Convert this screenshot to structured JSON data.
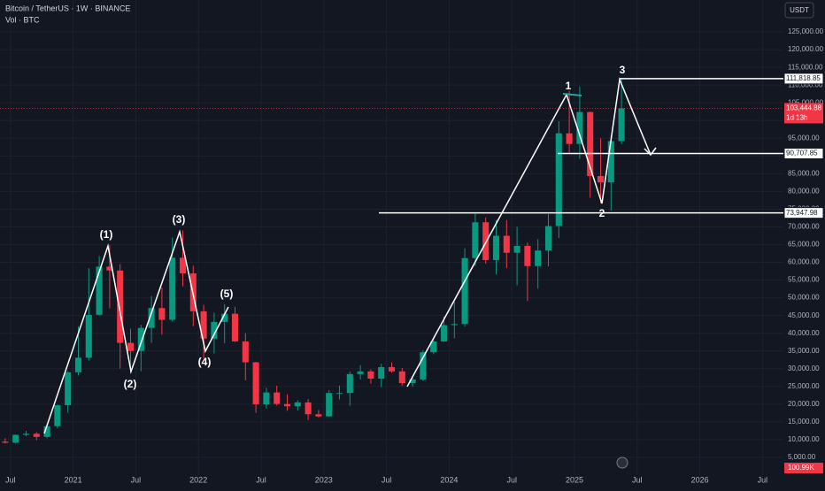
{
  "chart_data": {
    "type": "candlestick",
    "title": "Bitcoin / TetherUS · 1W · BINANCE",
    "subtitle": "Vol · BTC",
    "currency": "USDT",
    "categories": [
      "2020-06",
      "2020-07",
      "2020-08",
      "2020-09",
      "2020-10",
      "2020-11",
      "2020-12",
      "2021-01",
      "2021-02",
      "2021-03",
      "2021-04",
      "2021-05",
      "2021-06",
      "2021-07",
      "2021-08",
      "2021-09",
      "2021-10",
      "2021-11",
      "2021-12",
      "2022-01",
      "2022-02",
      "2022-03",
      "2022-04",
      "2022-05",
      "2022-06",
      "2022-07",
      "2022-08",
      "2022-09",
      "2022-10",
      "2022-11",
      "2022-12",
      "2023-01",
      "2023-02",
      "2023-03",
      "2023-04",
      "2023-05",
      "2023-06",
      "2023-07",
      "2023-08",
      "2023-09",
      "2023-10",
      "2023-11",
      "2023-12",
      "2024-01",
      "2024-02",
      "2024-03",
      "2024-04",
      "2024-05",
      "2024-06",
      "2024-07",
      "2024-08",
      "2024-09",
      "2024-10",
      "2024-11",
      "2024-12",
      "2025-01",
      "2025-02",
      "2025-03",
      "2025-04",
      "2025-05"
    ],
    "open": [
      9450,
      9130,
      11350,
      11650,
      10780,
      13800,
      19700,
      29000,
      33100,
      45200,
      58800,
      57700,
      37300,
      35000,
      41500,
      47100,
      43800,
      61300,
      56900,
      46200,
      38500,
      43200,
      45500,
      37700,
      31800,
      19950,
      23300,
      20050,
      19420,
      20500,
      17150,
      16550,
      23150,
      23150,
      28500,
      29250,
      27200,
      30450,
      29250,
      25950,
      26970,
      34650,
      37700,
      42300,
      42600,
      61200,
      71300,
      60650,
      67500,
      62700,
      64650,
      58950,
      63350,
      70250,
      96400,
      93400,
      102400,
      84350,
      82550,
      94200
    ],
    "high": [
      10400,
      11450,
      12480,
      12080,
      14100,
      19900,
      29300,
      41950,
      58350,
      61800,
      64850,
      59500,
      41300,
      42400,
      50500,
      52900,
      67000,
      69000,
      59050,
      48000,
      45800,
      48200,
      47450,
      40000,
      31950,
      24650,
      25200,
      22800,
      21100,
      21450,
      18400,
      23950,
      25250,
      29200,
      31000,
      29800,
      31400,
      31800,
      30200,
      27500,
      35200,
      38450,
      44700,
      48950,
      63950,
      73750,
      72700,
      71950,
      71950,
      70000,
      65600,
      66500,
      73600,
      99800,
      108350,
      109600,
      102500,
      95000,
      95750,
      111900
    ],
    "low": [
      8900,
      8980,
      10950,
      9880,
      10380,
      13200,
      17600,
      28100,
      32300,
      45000,
      47050,
      30000,
      28800,
      29300,
      37300,
      39600,
      43300,
      53250,
      42000,
      32900,
      34300,
      37200,
      37600,
      26700,
      17600,
      18800,
      19600,
      18150,
      18200,
      15500,
      16250,
      16500,
      21350,
      19550,
      26950,
      25800,
      24800,
      28850,
      25150,
      24900,
      26550,
      34100,
      37600,
      38550,
      41900,
      59000,
      59600,
      56550,
      58400,
      53500,
      49100,
      52550,
      58900,
      66850,
      90500,
      89200,
      78250,
      76600,
      74600,
      93400
    ],
    "close": [
      9130,
      11350,
      11650,
      10780,
      13800,
      19700,
      29000,
      33100,
      45200,
      58800,
      57700,
      37300,
      35000,
      41500,
      47100,
      43800,
      61300,
      56900,
      46200,
      38500,
      43200,
      45500,
      37700,
      31800,
      19950,
      23300,
      20050,
      19420,
      20500,
      17150,
      16550,
      23150,
      23150,
      28500,
      29250,
      27200,
      30450,
      29250,
      25950,
      26970,
      34650,
      37700,
      42300,
      42600,
      61200,
      71300,
      60650,
      67500,
      62700,
      64650,
      58950,
      63350,
      70250,
      96400,
      93400,
      102400,
      84350,
      82550,
      94200,
      103444.88
    ],
    "up_color": "#089981",
    "down_color": "#f23645",
    "xlim": [
      "2020-06",
      "2026-09"
    ],
    "xticks": [
      {
        "value": "2020-07",
        "label": "Jul"
      },
      {
        "value": "2021-01",
        "label": "2021"
      },
      {
        "value": "2021-07",
        "label": "Jul"
      },
      {
        "value": "2022-01",
        "label": "2022"
      },
      {
        "value": "2022-07",
        "label": "Jul"
      },
      {
        "value": "2023-01",
        "label": "2023"
      },
      {
        "value": "2023-07",
        "label": "Jul"
      },
      {
        "value": "2024-01",
        "label": "2024"
      },
      {
        "value": "2024-07",
        "label": "Jul"
      },
      {
        "value": "2025-01",
        "label": "2025"
      },
      {
        "value": "2025-07",
        "label": "Jul"
      },
      {
        "value": "2026-01",
        "label": "2026"
      },
      {
        "value": "2026-07",
        "label": "Jul"
      }
    ],
    "ylim": [
      0,
      134000
    ],
    "yticks": [
      {
        "value": 5000,
        "label": "5,000.00"
      },
      {
        "value": 10000,
        "label": "10,000.00"
      },
      {
        "value": 15000,
        "label": "15,000.00"
      },
      {
        "value": 20000,
        "label": "20,000.00"
      },
      {
        "value": 25000,
        "label": "25,000.00"
      },
      {
        "value": 30000,
        "label": "30,000.00"
      },
      {
        "value": 35000,
        "label": "35,000.00"
      },
      {
        "value": 40000,
        "label": "40,000.00"
      },
      {
        "value": 45000,
        "label": "45,000.00"
      },
      {
        "value": 50000,
        "label": "50,000.00"
      },
      {
        "value": 55000,
        "label": "55,000.00"
      },
      {
        "value": 60000,
        "label": "60,000.00"
      },
      {
        "value": 65000,
        "label": "65,000.00"
      },
      {
        "value": 70000,
        "label": "70,000.00"
      },
      {
        "value": 75000,
        "label": "75,000.00"
      },
      {
        "value": 80000,
        "label": "80,000.00"
      },
      {
        "value": 85000,
        "label": "85,000.00"
      },
      {
        "value": 90000,
        "label": "90,000.00"
      },
      {
        "value": 95000,
        "label": "95,000.00"
      },
      {
        "value": 100000,
        "label": "100,000.00"
      },
      {
        "value": 105000,
        "label": "105,000.00"
      },
      {
        "value": 110000,
        "label": "110,000.00"
      },
      {
        "value": 115000,
        "label": "115,000.00"
      },
      {
        "value": 120000,
        "label": "120,000.00"
      },
      {
        "value": 125000,
        "label": "125,000.00"
      }
    ],
    "grid": true,
    "price_lines": [
      {
        "value": 111818.85,
        "label": "111,818.85"
      },
      {
        "value": 90707.85,
        "label": "90,707.85"
      },
      {
        "value": 73947.98,
        "label": "73,947.98"
      }
    ],
    "last_price": {
      "value": 103444.88,
      "label": "103,444.88",
      "countdown": "1d 13h"
    },
    "volume_label": "100.99K",
    "annotations": [
      "(1)",
      "(2)",
      "(3)",
      "(4)",
      "(5)",
      "1",
      "2",
      "3"
    ]
  }
}
